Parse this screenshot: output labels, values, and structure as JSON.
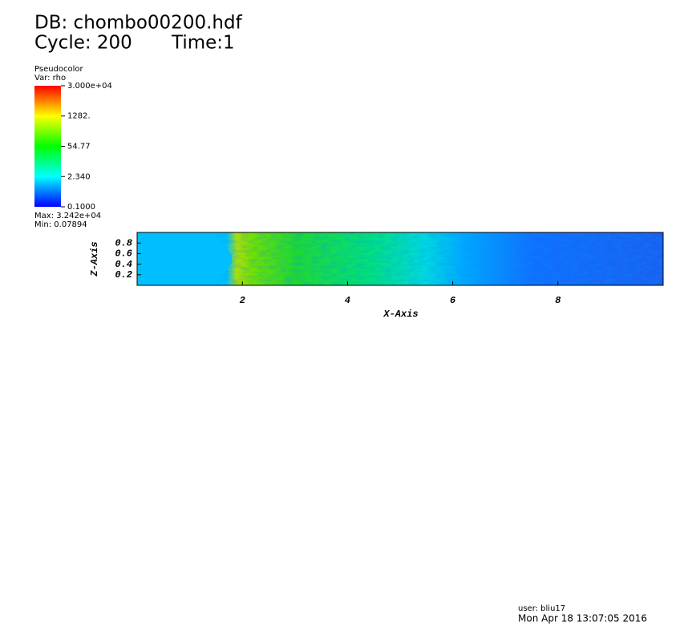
{
  "chart_data": {
    "type": "pseudocolor",
    "title": "DB: chombo00200.hdf",
    "cycle": "Cycle: 200",
    "time": "Time:1",
    "legend_title": "Pseudocolor",
    "variable": "Var: rho",
    "clim": [
      0.1,
      30000
    ],
    "clog": true,
    "cticks": [
      {
        "value": 30000,
        "label": "3.000e+04"
      },
      {
        "value": 1282,
        "label": "1282."
      },
      {
        "value": 54.77,
        "label": "54.77"
      },
      {
        "value": 2.34,
        "label": "2.340"
      },
      {
        "value": 0.1,
        "label": "0.1000"
      }
    ],
    "max_label": "Max:  3.242e+04",
    "min_label": "Min:  0.07894",
    "xlabel": "X-Axis",
    "ylabel": "Z-Axis",
    "xlim": [
      0,
      10
    ],
    "xticks": [
      2,
      4,
      6,
      8
    ],
    "ylim": [
      0,
      1
    ],
    "yticks": [
      0.2,
      0.4,
      0.6,
      0.8
    ],
    "user": "user: bliu17",
    "date": "Mon Apr 18 13:07:05 2016"
  }
}
